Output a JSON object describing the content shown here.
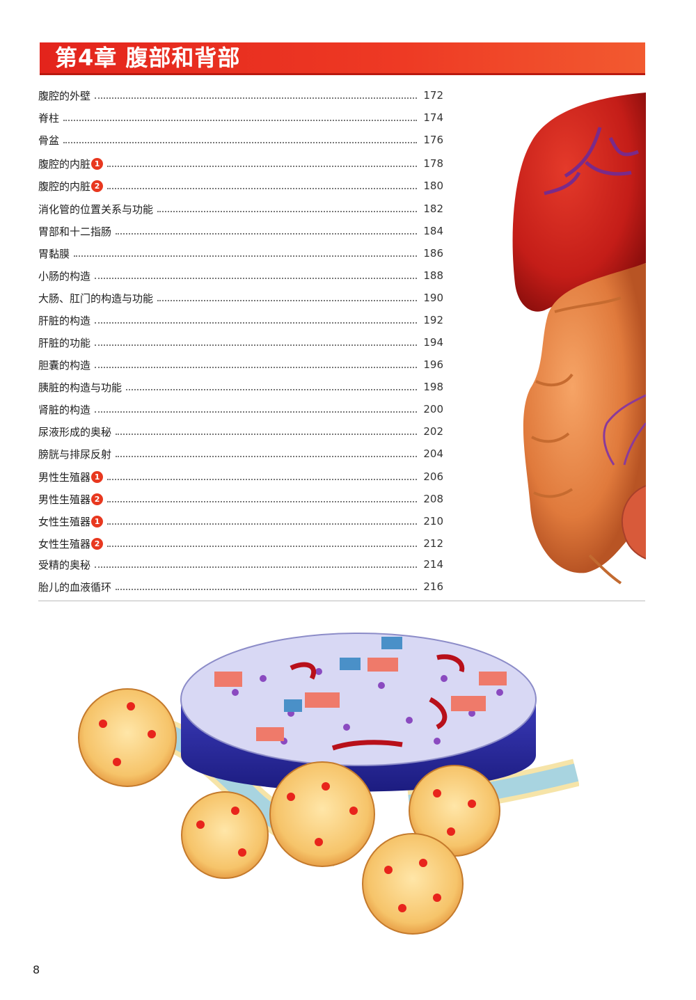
{
  "chapter": {
    "title": "第4章  腹部和背部"
  },
  "toc": [
    {
      "title": "腹腔的外壁",
      "badge": "",
      "page": "172"
    },
    {
      "title": "脊柱",
      "badge": "",
      "page": "174"
    },
    {
      "title": "骨盆",
      "badge": "",
      "page": "176"
    },
    {
      "title": "腹腔的内脏",
      "badge": "1",
      "page": "178"
    },
    {
      "title": "腹腔的内脏",
      "badge": "2",
      "page": "180"
    },
    {
      "title": "消化管的位置关系与功能",
      "badge": "",
      "page": "182"
    },
    {
      "title": "胃部和十二指肠",
      "badge": "",
      "page": "184"
    },
    {
      "title": "胃黏膜",
      "badge": "",
      "page": "186"
    },
    {
      "title": "小肠的构造",
      "badge": "",
      "page": "188"
    },
    {
      "title": "大肠、肛门的构造与功能",
      "badge": "",
      "page": "190"
    },
    {
      "title": "肝脏的构造",
      "badge": "",
      "page": "192"
    },
    {
      "title": "肝脏的功能",
      "badge": "",
      "page": "194"
    },
    {
      "title": "胆囊的构造",
      "badge": "",
      "page": "196"
    },
    {
      "title": "胰脏的构造与功能",
      "badge": "",
      "page": "198"
    },
    {
      "title": "肾脏的构造",
      "badge": "",
      "page": "200"
    },
    {
      "title": "尿液形成的奥秘",
      "badge": "",
      "page": "202"
    },
    {
      "title": "膀胱与排尿反射",
      "badge": "",
      "page": "204"
    },
    {
      "title": "男性生殖器",
      "badge": "1",
      "page": "206"
    },
    {
      "title": "男性生殖器",
      "badge": "2",
      "page": "208"
    },
    {
      "title": "女性生殖器",
      "badge": "1",
      "page": "210"
    },
    {
      "title": "女性生殖器",
      "badge": "2",
      "page": "212"
    },
    {
      "title": "受精的奥秘",
      "badge": "",
      "page": "214"
    },
    {
      "title": "胎儿的血液循环",
      "badge": "",
      "page": "216"
    }
  ],
  "page_number": "8",
  "colors": {
    "accent": "#e3241c",
    "badge": "#e8381f"
  }
}
